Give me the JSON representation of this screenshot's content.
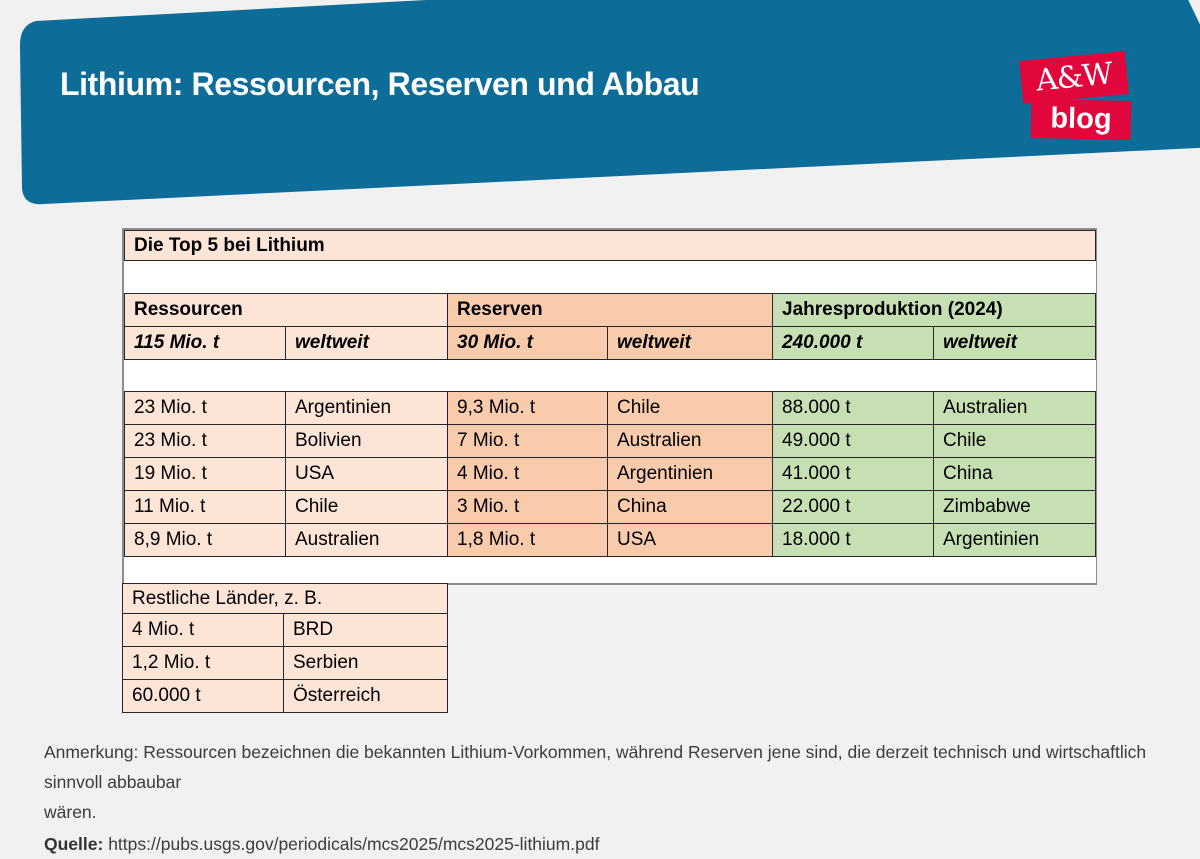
{
  "page": {
    "bg": "#f1f1f2"
  },
  "header": {
    "title": "Lithium: Ressourcen, Reserven und Abbau",
    "banner_color": "#0d6d98",
    "logo": {
      "line1": "A&W",
      "line2": "blog",
      "color": "#e1063c"
    }
  },
  "chart_data": {
    "type": "table",
    "title": "Die Top 5 bei Lithium",
    "groups": [
      {
        "name": "Ressourcen",
        "world_total": "115 Mio. t",
        "scope": "weltweit",
        "color": "#fce4d6"
      },
      {
        "name": "Reserven",
        "world_total": "30 Mio. t",
        "scope": "weltweit",
        "color": "#f8cbad"
      },
      {
        "name": "Jahresproduktion (2024)",
        "world_total": "240.000 t",
        "scope": "weltweit",
        "color": "#c6e0b4"
      }
    ],
    "rows": [
      [
        "23 Mio. t",
        "Argentinien",
        "9,3 Mio. t",
        "Chile",
        "88.000 t",
        "Australien"
      ],
      [
        "23 Mio. t",
        "Bolivien",
        "7 Mio. t",
        "Australien",
        "49.000 t",
        "Chile"
      ],
      [
        "19 Mio. t",
        "USA",
        "4 Mio. t",
        "Argentinien",
        "41.000 t",
        "China"
      ],
      [
        "11 Mio. t",
        "Chile",
        "3 Mio. t",
        "China",
        "22.000 t",
        "Zimbabwe"
      ],
      [
        "8,9 Mio. t",
        "Australien",
        "1,8 Mio. t",
        "USA",
        "18.000 t",
        "Argentinien"
      ]
    ],
    "rest": {
      "title": "Restliche Länder, z. B.",
      "color": "#fce4d6",
      "rows": [
        [
          "4 Mio. t",
          "BRD"
        ],
        [
          "1,2 Mio. t",
          "Serbien"
        ],
        [
          "60.000 t",
          "Österreich"
        ]
      ]
    }
  },
  "footnotes": {
    "anmerkung_line1": "Anmerkung: Ressourcen bezeichnen die bekannten Lithium-Vorkommen, während Reserven jene sind, die derzeit technisch und wirtschaftlich sinnvoll abbaubar",
    "anmerkung_line2": "wären.",
    "quelle_label": "Quelle:",
    "quelle_url": "https://pubs.usgs.gov/periodicals/mcs2025/mcs2025-lithium.pdf"
  }
}
